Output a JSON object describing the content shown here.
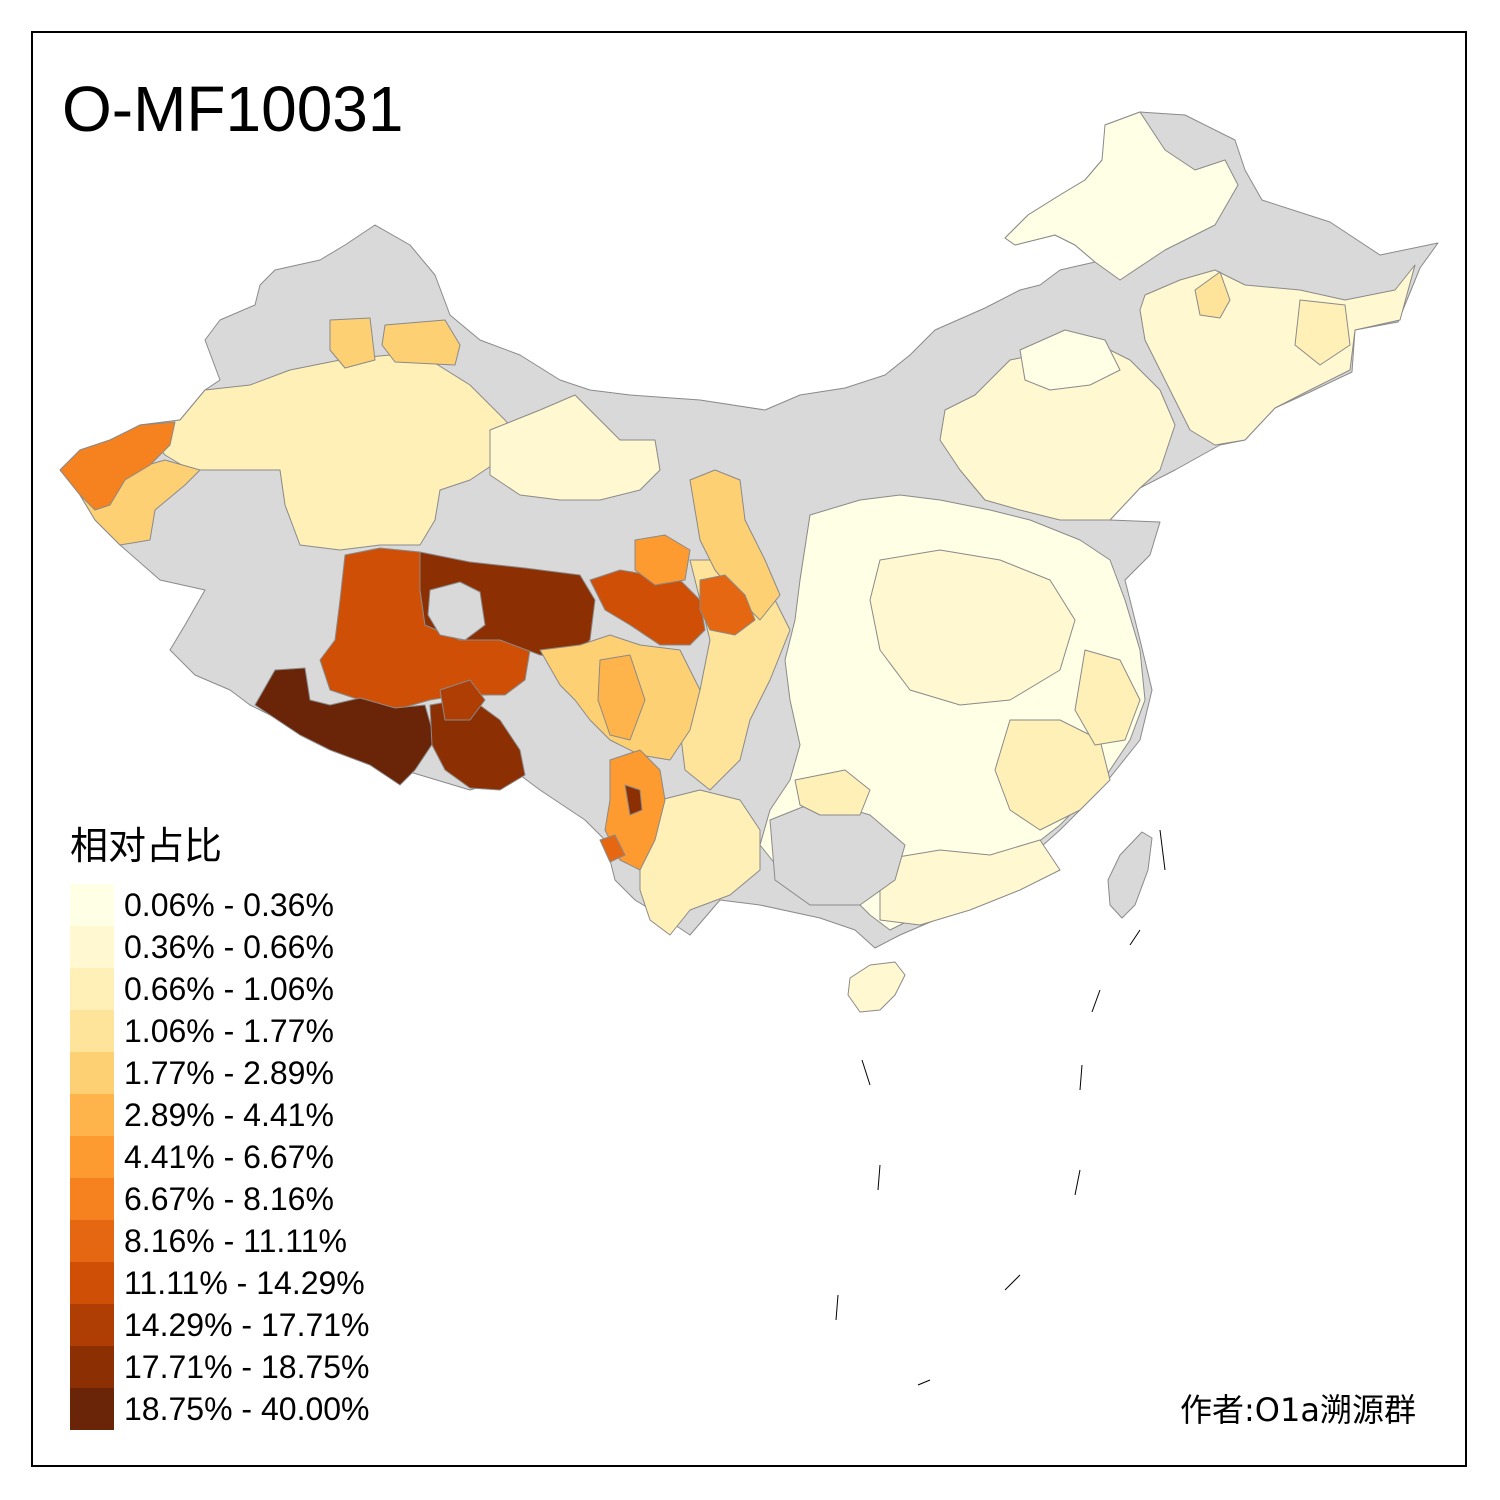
{
  "title": "O-MF10031",
  "legend": {
    "title": "相对占比",
    "classes": [
      {
        "label": "0.06% - 0.36%",
        "color": "#ffffe5"
      },
      {
        "label": "0.36% - 0.66%",
        "color": "#fff8d0"
      },
      {
        "label": "0.66% - 1.06%",
        "color": "#fff0b8"
      },
      {
        "label": "1.06% - 1.77%",
        "color": "#fee49a"
      },
      {
        "label": "1.77% - 2.89%",
        "color": "#fed074"
      },
      {
        "label": "2.89% - 4.41%",
        "color": "#feb44a"
      },
      {
        "label": "4.41% - 6.67%",
        "color": "#fd9a30"
      },
      {
        "label": "6.67% - 8.16%",
        "color": "#f6821f"
      },
      {
        "label": "8.16% - 11.11%",
        "color": "#e56712"
      },
      {
        "label": "11.11% - 14.29%",
        "color": "#cf4f06"
      },
      {
        "label": "14.29% - 17.71%",
        "color": "#ae3e04"
      },
      {
        "label": "17.71% - 18.75%",
        "color": "#8c3004"
      },
      {
        "label": "18.75% - 40.00%",
        "color": "#6a2408"
      }
    ]
  },
  "no_data_color": "#d9d9d9",
  "credit": "作者:O1a溯源群"
}
